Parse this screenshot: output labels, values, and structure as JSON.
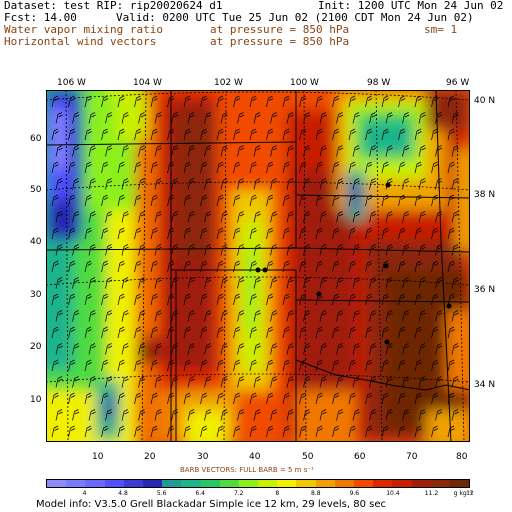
{
  "header": {
    "dataset": "Dataset: test  RIP: rip20020624 d1",
    "init": "Init: 1200 UTC Mon 24 Jun 02",
    "fcst": "Fcst:    14.00",
    "valid": "Valid: 0200 UTC Tue 25 Jun 02 (2100 CDT Mon 24 Jun 02)",
    "field1_name": "Water vapor mixing ratio",
    "field1_level": "at pressure =   850 hPa",
    "field1_extra": "sm= 1",
    "field2_name": "Horizontal wind vectors",
    "field2_level": "at pressure =   850 hPa"
  },
  "map": {
    "top_longitudes": [
      "106 W",
      "104 W",
      "102 W",
      "100 W",
      "98 W",
      "96 W"
    ],
    "right_latitudes": [
      "40 N",
      "38 N",
      "36 N",
      "34 N"
    ],
    "left_ticks": [
      "60",
      "50",
      "40",
      "30",
      "20",
      "10"
    ],
    "bottom_ticks": [
      "10",
      "20",
      "30",
      "40",
      "50",
      "60",
      "70",
      "80"
    ]
  },
  "barb_label": "BARB VECTORS:  FULL BARB = 5 m s⁻¹",
  "colorbar": {
    "colors": [
      "#8c8cff",
      "#7a7aff",
      "#6a6aff",
      "#5050ff",
      "#3c3cd2",
      "#2828b4",
      "#1e9c96",
      "#1eb48c",
      "#28c864",
      "#50dc3c",
      "#8cf01e",
      "#c8f000",
      "#f0f000",
      "#f0c800",
      "#f0a000",
      "#f07800",
      "#f04b00",
      "#dc2800",
      "#c81e00",
      "#a01e0a",
      "#8c280a",
      "#6e2805"
    ],
    "labels": [
      "4",
      "4.8",
      "5.6",
      "6.4",
      "7.2",
      "8",
      "8.8",
      "9.6",
      "10.4",
      "11.2",
      "12",
      "g kg⁻¹"
    ]
  },
  "footer": "Model info: V3.5.0  Grell     Blackadar  Simple ice    12 km,  29 levels,  80 sec"
}
